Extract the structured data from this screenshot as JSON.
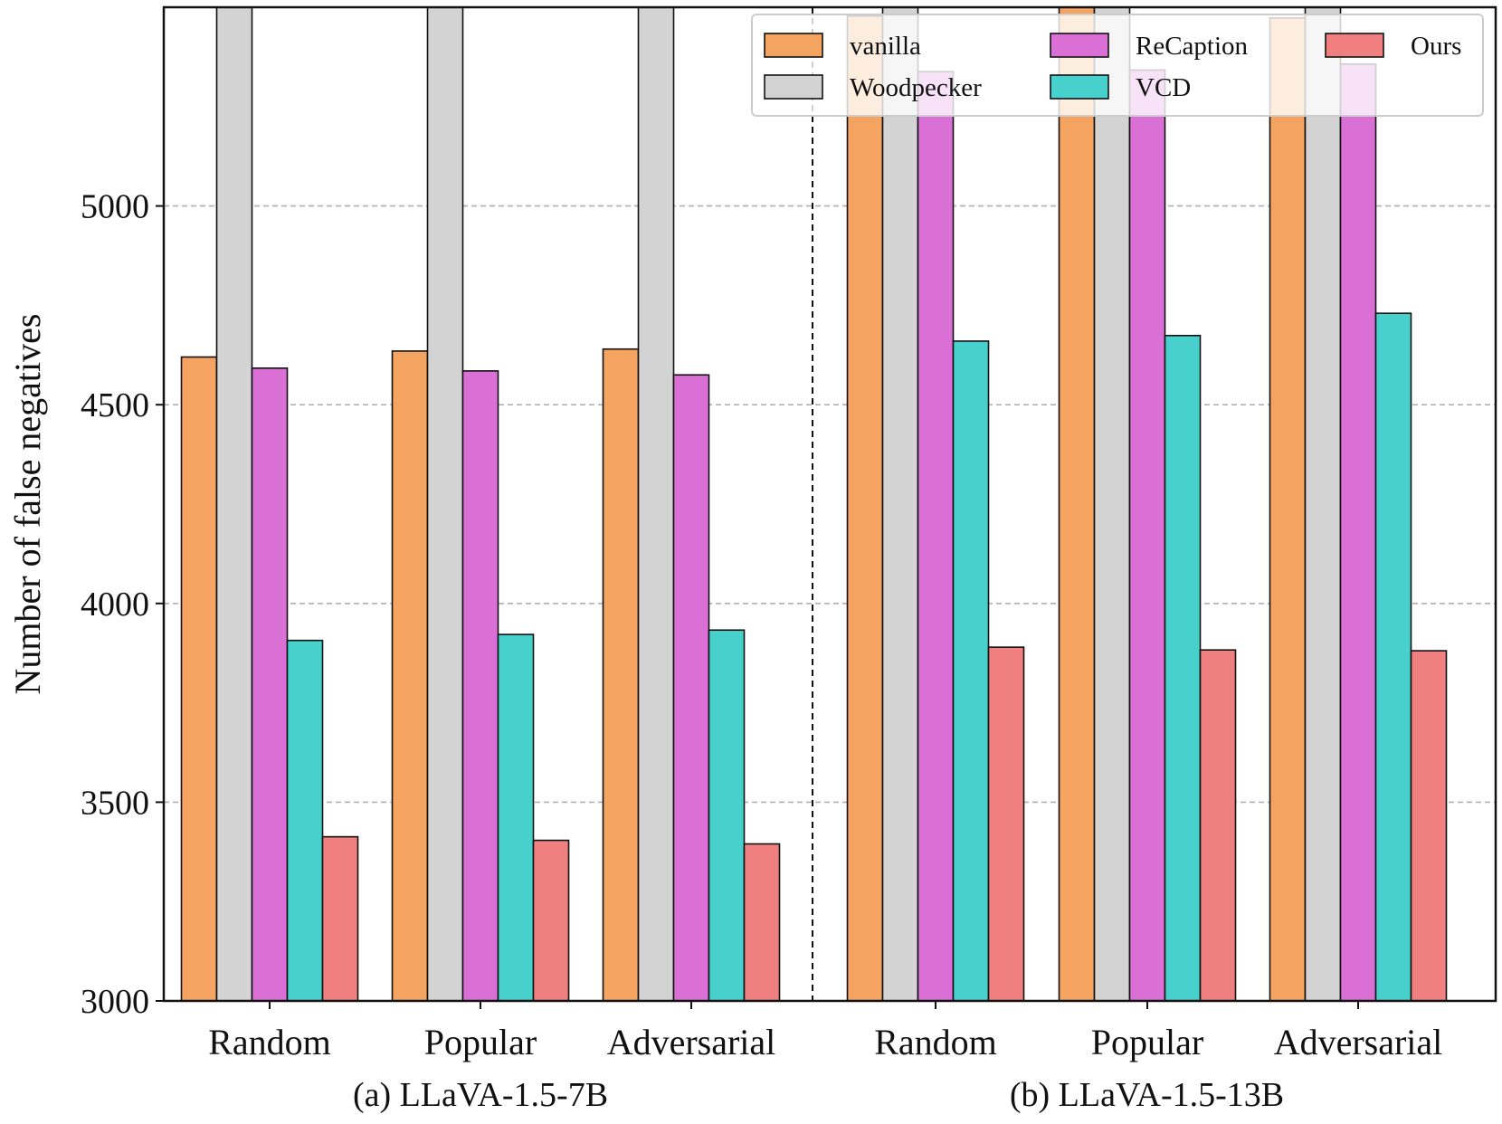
{
  "chart_data": {
    "type": "bar",
    "ylabel": "Number of false negatives",
    "ylim": [
      3000,
      5500
    ],
    "yticks": [
      3000,
      3500,
      4000,
      4500,
      5000
    ],
    "grid": "horizontal-dashed",
    "legend_position": "top-right",
    "groups": [
      {
        "label": "(a) LLaVA-1.5-7B",
        "categories": [
          "Random",
          "Popular",
          "Adversarial"
        ],
        "series": [
          {
            "name": "vanilla",
            "values": [
              4620,
              4635,
              4640
            ]
          },
          {
            "name": "Woodpecker",
            "values": [
              5560,
              5560,
              5560
            ]
          },
          {
            "name": "ReCaption",
            "values": [
              4592,
              4585,
              4575
            ]
          },
          {
            "name": "VCD",
            "values": [
              3907,
              3922,
              3933
            ]
          },
          {
            "name": "Ours",
            "values": [
              3413,
              3404,
              3395
            ]
          }
        ]
      },
      {
        "label": "(b) LLaVA-1.5-13B",
        "categories": [
          "Random",
          "Popular",
          "Adversarial"
        ],
        "series": [
          {
            "name": "vanilla",
            "values": [
              5478,
              5520,
              5473
            ]
          },
          {
            "name": "Woodpecker",
            "values": [
              5560,
              5560,
              5560
            ]
          },
          {
            "name": "ReCaption",
            "values": [
              5338,
              5342,
              5357
            ]
          },
          {
            "name": "VCD",
            "values": [
              4660,
              4674,
              4730
            ]
          },
          {
            "name": "Ours",
            "values": [
              3890,
              3883,
              3881
            ]
          }
        ]
      }
    ],
    "legend": [
      {
        "name": "vanilla",
        "color": "#F4A460"
      },
      {
        "name": "Woodpecker",
        "color": "#D3D3D3"
      },
      {
        "name": "ReCaption",
        "color": "#DA70D6"
      },
      {
        "name": "VCD",
        "color": "#48D1CC"
      },
      {
        "name": "Ours",
        "color": "#F08080"
      }
    ]
  }
}
